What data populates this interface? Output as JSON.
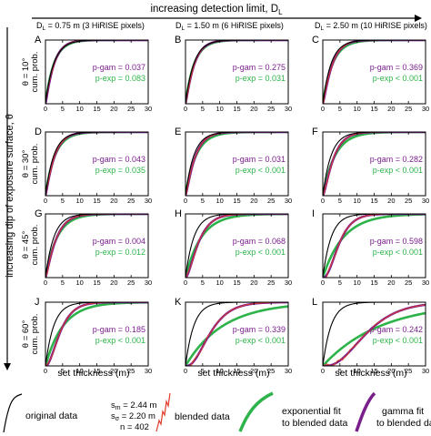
{
  "top_label": "increasing detection limit, D",
  "top_label_sub": "L",
  "left_label": "increasing dip of exposure surface, θ",
  "columns": [
    {
      "prefix": "D",
      "sub": "L",
      "text": " = 0.75 m (3 HiRISE pixels)"
    },
    {
      "prefix": "D",
      "sub": "L",
      "text": " = 1.50 m (6 HiRISE pixels)"
    },
    {
      "prefix": "D",
      "sub": "L",
      "text": " = 2.50 m (10 HiRISE pixels)"
    }
  ],
  "rows": [
    {
      "theta": "θ = 10°",
      "ylabel": "cum. prob."
    },
    {
      "theta": "θ = 30°",
      "ylabel": "cum. prob."
    },
    {
      "theta": "θ = 45°",
      "ylabel": "cum. prob."
    },
    {
      "theta": "θ = 60°",
      "ylabel": "cum. prob."
    }
  ],
  "xlabel": "set thickness (m)",
  "legend": {
    "original": "original data",
    "stats": [
      "s",
      "m",
      " = 2.44 m",
      "s",
      "σ",
      " = 2.20 m",
      "n = 402"
    ],
    "blended": "blended data",
    "exp_line1": "exponential fit",
    "exp_line2": "to blended data",
    "gam_line1": "gamma fit",
    "gam_line2": "to blended data"
  },
  "colors": {
    "original": "#000000",
    "blended": "#e03c28",
    "exponential": "#2db34a",
    "gamma": "#7a1e8c"
  },
  "chart_data": {
    "type": "line",
    "layout": "4x3 grid of cumulative distribution panels",
    "xlim": [
      0,
      30
    ],
    "ylim": [
      0,
      1
    ],
    "xticks": [
      0,
      5,
      10,
      15,
      20,
      25,
      30
    ],
    "panels": [
      {
        "letter": "A",
        "p_gam": "p-gam = 0.037",
        "p_exp": "p-exp = 0.083",
        "orig_mean": 2.44,
        "shift": 0,
        "blend_mean": 2.5,
        "gam_k": 1.2,
        "exp_mean": 2.5
      },
      {
        "letter": "B",
        "p_gam": "p-gam = 0.275",
        "p_exp": "p-exp = 0.031",
        "orig_mean": 2.44,
        "shift": 0,
        "blend_mean": 2.6,
        "gam_k": 1.2,
        "exp_mean": 2.6
      },
      {
        "letter": "C",
        "p_gam": "p-gam = 0.369",
        "p_exp": "p-exp < 0.001",
        "orig_mean": 2.44,
        "shift": 0,
        "blend_mean": 2.8,
        "gam_k": 1.3,
        "exp_mean": 2.9
      },
      {
        "letter": "D",
        "p_gam": "p-gam = 0.043",
        "p_exp": "p-exp = 0.035",
        "orig_mean": 2.44,
        "shift": 0,
        "blend_mean": 2.7,
        "gam_k": 1.2,
        "exp_mean": 2.8
      },
      {
        "letter": "E",
        "p_gam": "p-gam = 0.031",
        "p_exp": "p-exp < 0.001",
        "orig_mean": 2.44,
        "shift": 0,
        "blend_mean": 2.9,
        "gam_k": 1.3,
        "exp_mean": 3.1
      },
      {
        "letter": "F",
        "p_gam": "p-gam = 0.282",
        "p_exp": "p-exp < 0.001",
        "orig_mean": 2.44,
        "shift": 0,
        "blend_mean": 3.3,
        "gam_k": 1.5,
        "exp_mean": 3.6
      },
      {
        "letter": "G",
        "p_gam": "p-gam = 0.004",
        "p_exp": "p-exp = 0.012",
        "orig_mean": 2.44,
        "shift": 0,
        "blend_mean": 3.2,
        "gam_k": 1.3,
        "exp_mean": 3.4
      },
      {
        "letter": "H",
        "p_gam": "p-gam = 0.068",
        "p_exp": "p-exp < 0.001",
        "orig_mean": 2.44,
        "shift": 0.5,
        "blend_mean": 4.2,
        "gam_k": 1.8,
        "exp_mean": 4.6
      },
      {
        "letter": "I",
        "p_gam": "p-gam = 0.598",
        "p_exp": "p-exp < 0.001",
        "orig_mean": 2.44,
        "shift": 1.2,
        "blend_mean": 5.2,
        "gam_k": 2.6,
        "exp_mean": 6.0
      },
      {
        "letter": "J",
        "p_gam": "p-gam = 0.185",
        "p_exp": "p-exp < 0.001",
        "orig_mean": 2.44,
        "shift": 0.8,
        "blend_mean": 4.8,
        "gam_k": 2.2,
        "exp_mean": 5.2
      },
      {
        "letter": "K",
        "p_gam": "p-gam = 0.339",
        "p_exp": "p-exp < 0.001",
        "orig_mean": 2.44,
        "shift": 2.2,
        "blend_mean": 8.0,
        "gam_k": 2.8,
        "exp_mean": 11.0
      },
      {
        "letter": "L",
        "p_gam": "p-gam = 0.242",
        "p_exp": "p-exp < 0.001",
        "orig_mean": 2.44,
        "shift": 3.5,
        "blend_mean": 14.0,
        "gam_k": 3.2,
        "exp_mean": 17.0
      }
    ]
  }
}
